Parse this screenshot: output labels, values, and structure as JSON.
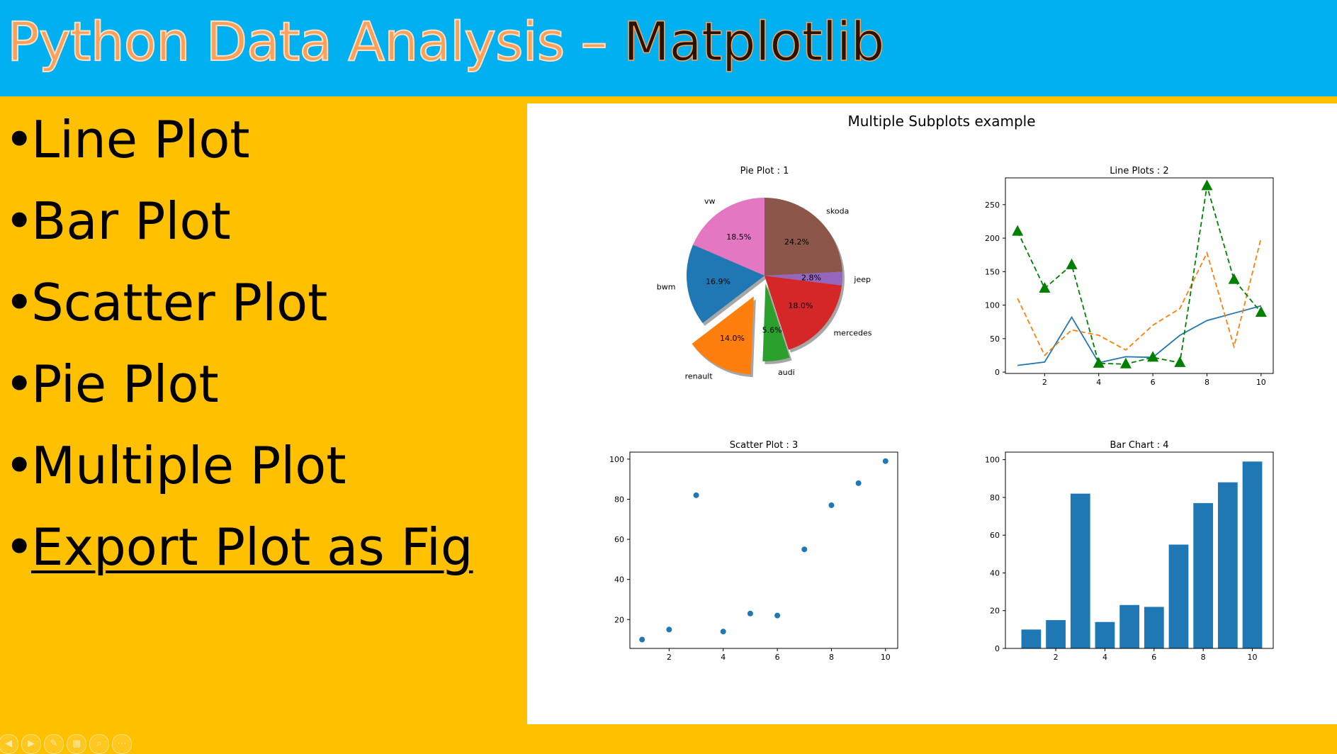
{
  "slide": {
    "title_part1": "Python Data Analysis – ",
    "title_part2": "Matplotlib",
    "bullets": [
      {
        "text": "Line Plot",
        "underlined": false
      },
      {
        "text": "Bar Plot",
        "underlined": false
      },
      {
        "text": "Scatter Plot",
        "underlined": false
      },
      {
        "text": "Pie Plot",
        "underlined": false
      },
      {
        "text": "Multiple Plot",
        "underlined": false
      },
      {
        "text": "Export Plot as Fig",
        "underlined": true
      }
    ],
    "bullet_glyph": "•",
    "colors": {
      "header_bg": "#00b0f0",
      "slide_bg": "#ffc000",
      "figure_bg": "#ffffff"
    },
    "controls": [
      {
        "icon": "previous-icon",
        "glyph": "◀"
      },
      {
        "icon": "next-icon",
        "glyph": "▶"
      },
      {
        "icon": "pen-icon",
        "glyph": "✎"
      },
      {
        "icon": "slides-grid-icon",
        "glyph": "▦"
      },
      {
        "icon": "zoom-icon",
        "glyph": "⌕"
      },
      {
        "icon": "more-options-icon",
        "glyph": "⋯"
      }
    ]
  },
  "figure": {
    "suptitle": "Multiple Subplots example"
  },
  "chart_data": [
    {
      "type": "pie",
      "title": "Pie Plot :  1",
      "labels": [
        "vw",
        "bwm",
        "renault",
        "audi",
        "mercedes",
        "jeep",
        "skoda"
      ],
      "values": [
        18.5,
        16.9,
        14.0,
        5.6,
        18.0,
        2.8,
        24.2
      ],
      "autopct": [
        "18.5%",
        "16.9%",
        "14.0%",
        "5.6%",
        "18.0%",
        "2.8%",
        "24.2%"
      ],
      "explode": [
        0,
        0,
        0.3,
        0.1,
        0,
        0,
        0
      ],
      "colors": [
        "#e377c2",
        "#1f77b4",
        "#ff7f0e",
        "#2ca02c",
        "#d62728",
        "#9467bd",
        "#8c564b"
      ],
      "shadow": true,
      "startangle": 90
    },
    {
      "type": "line",
      "title": "Line Plots : 2",
      "x": [
        1,
        2,
        3,
        4,
        5,
        6,
        7,
        8,
        9,
        10
      ],
      "series": [
        {
          "values": [
            10,
            15,
            82,
            14,
            23,
            22,
            55,
            77,
            88,
            99
          ],
          "color": "#1f77b4",
          "style": "solid",
          "marker": "none"
        },
        {
          "values": [
            110,
            25,
            63,
            55,
            33,
            70,
            95,
            178,
            38,
            200
          ],
          "color": "#ff7f0e",
          "style": "dashed",
          "marker": "none"
        },
        {
          "values": [
            210,
            125,
            160,
            13,
            12,
            22,
            14,
            278,
            138,
            89
          ],
          "color": "#008000",
          "style": "dashed",
          "marker": "triangle"
        }
      ],
      "xticks": [
        2,
        4,
        6,
        8,
        10
      ],
      "yticks": [
        0,
        50,
        100,
        150,
        200,
        250
      ],
      "xlim": [
        0.55,
        10.45
      ],
      "ylim": [
        -2,
        290
      ]
    },
    {
      "type": "scatter",
      "title": "Scatter Plot : 3",
      "x": [
        1,
        2,
        3,
        4,
        5,
        6,
        7,
        8,
        9,
        10
      ],
      "y": [
        10,
        15,
        82,
        14,
        23,
        22,
        55,
        77,
        88,
        99
      ],
      "color": "#1f77b4",
      "xticks": [
        2,
        4,
        6,
        8,
        10
      ],
      "yticks": [
        20,
        40,
        60,
        80,
        100
      ],
      "xlim": [
        0.55,
        10.45
      ],
      "ylim": [
        5.6,
        103.5
      ]
    },
    {
      "type": "bar",
      "title": "Bar Chart :  4",
      "x": [
        1,
        2,
        3,
        4,
        5,
        6,
        7,
        8,
        9,
        10
      ],
      "values": [
        10,
        15,
        82,
        14,
        23,
        22,
        55,
        77,
        88,
        99
      ],
      "color": "#1f77b4",
      "xticks": [
        2,
        4,
        6,
        8,
        10
      ],
      "yticks": [
        0,
        20,
        40,
        60,
        80,
        100
      ],
      "xlim": [
        -0.05,
        10.85
      ],
      "ylim": [
        0,
        104
      ]
    }
  ]
}
